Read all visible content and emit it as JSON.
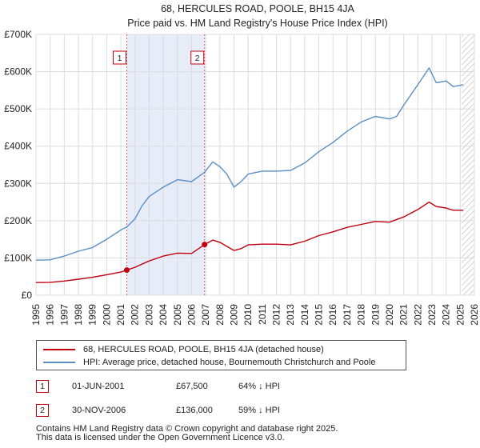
{
  "chart_data": {
    "type": "line",
    "title": "68, HERCULES ROAD, POOLE, BH15 4JA",
    "subtitle": "Price paid vs. HM Land Registry's House Price Index (HPI)",
    "xlim": [
      1995,
      2026
    ],
    "ylim": [
      0,
      700000
    ],
    "x_ticks": [
      "1995",
      "1996",
      "1997",
      "1998",
      "1999",
      "2000",
      "2001",
      "2002",
      "2003",
      "2004",
      "2005",
      "2006",
      "2007",
      "2008",
      "2009",
      "2010",
      "2011",
      "2012",
      "2013",
      "2014",
      "2015",
      "2016",
      "2017",
      "2018",
      "2019",
      "2020",
      "2021",
      "2022",
      "2023",
      "2024",
      "2025",
      "2026"
    ],
    "y_ticks": [
      {
        "value": 0,
        "label": "£0"
      },
      {
        "value": 100000,
        "label": "£100K"
      },
      {
        "value": 200000,
        "label": "£200K"
      },
      {
        "value": 300000,
        "label": "£300K"
      },
      {
        "value": 400000,
        "label": "£400K"
      },
      {
        "value": 500000,
        "label": "£500K"
      },
      {
        "value": 600000,
        "label": "£600K"
      },
      {
        "value": 700000,
        "label": "£700K"
      }
    ],
    "grid": true,
    "shaded_period": [
      2001.42,
      2006.92
    ],
    "future_hatch_from": 2025.1,
    "series": [
      {
        "name": "68, HERCULES ROAD, POOLE, BH15 4JA (detached house)",
        "color": "#c0000d",
        "x": [
          1995,
          1996,
          1997,
          1998,
          1999,
          2000,
          2001,
          2001.42,
          2002,
          2003,
          2004,
          2005,
          2006,
          2006.92,
          2007.5,
          2008,
          2009,
          2009.5,
          2010,
          2011,
          2012,
          2013,
          2014,
          2015,
          2016,
          2017,
          2018,
          2019,
          2020,
          2021,
          2022,
          2022.8,
          2023.3,
          2024,
          2024.5,
          2025.2
        ],
        "values": [
          34000,
          34500,
          38000,
          43000,
          48000,
          55000,
          62000,
          67500,
          75000,
          92000,
          105000,
          113000,
          112000,
          136000,
          148000,
          142000,
          120000,
          125000,
          135000,
          137000,
          137000,
          135000,
          145000,
          160000,
          170000,
          182000,
          190000,
          198000,
          196000,
          210000,
          230000,
          250000,
          238000,
          234000,
          228000,
          228000
        ]
      },
      {
        "name": "HPI: Average price, detached house, Bournemouth Christchurch and Poole",
        "color": "#5b8ec4",
        "x": [
          1995,
          1996,
          1997,
          1998,
          1999,
          2000,
          2001,
          2001.42,
          2002,
          2002.5,
          2003,
          2004,
          2005,
          2006,
          2006.92,
          2007.5,
          2008,
          2008.5,
          2009,
          2009.5,
          2010,
          2011,
          2012,
          2013,
          2014,
          2015,
          2016,
          2017,
          2018,
          2019,
          2020,
          2020.5,
          2021,
          2022,
          2022.8,
          2023.3,
          2024,
          2024.5,
          2025.2
        ],
        "values": [
          94000,
          95000,
          105000,
          118000,
          128000,
          150000,
          175000,
          183000,
          205000,
          240000,
          265000,
          290000,
          310000,
          305000,
          330000,
          358000,
          345000,
          325000,
          290000,
          305000,
          325000,
          333000,
          333000,
          335000,
          355000,
          385000,
          410000,
          440000,
          465000,
          480000,
          473000,
          480000,
          510000,
          565000,
          610000,
          570000,
          575000,
          560000,
          565000
        ]
      }
    ],
    "sales": [
      {
        "label": "1",
        "date": "01-JUN-2001",
        "year": 2001.42,
        "price": 67500,
        "price_label": "£67,500",
        "hpi": "64% ↓ HPI"
      },
      {
        "label": "2",
        "date": "30-NOV-2006",
        "year": 2006.92,
        "price": 136000,
        "price_label": "£136,000",
        "hpi": "59% ↓ HPI"
      }
    ]
  },
  "legend": {
    "property_label": "68, HERCULES ROAD, POOLE, BH15 4JA (detached house)",
    "hpi_label": "HPI: Average price, detached house, Bournemouth Christchurch and Poole"
  },
  "footer": {
    "line1": "Contains HM Land Registry data © Crown copyright and database right 2025.",
    "line2": "This data is licensed under the Open Government Licence v3.0."
  }
}
